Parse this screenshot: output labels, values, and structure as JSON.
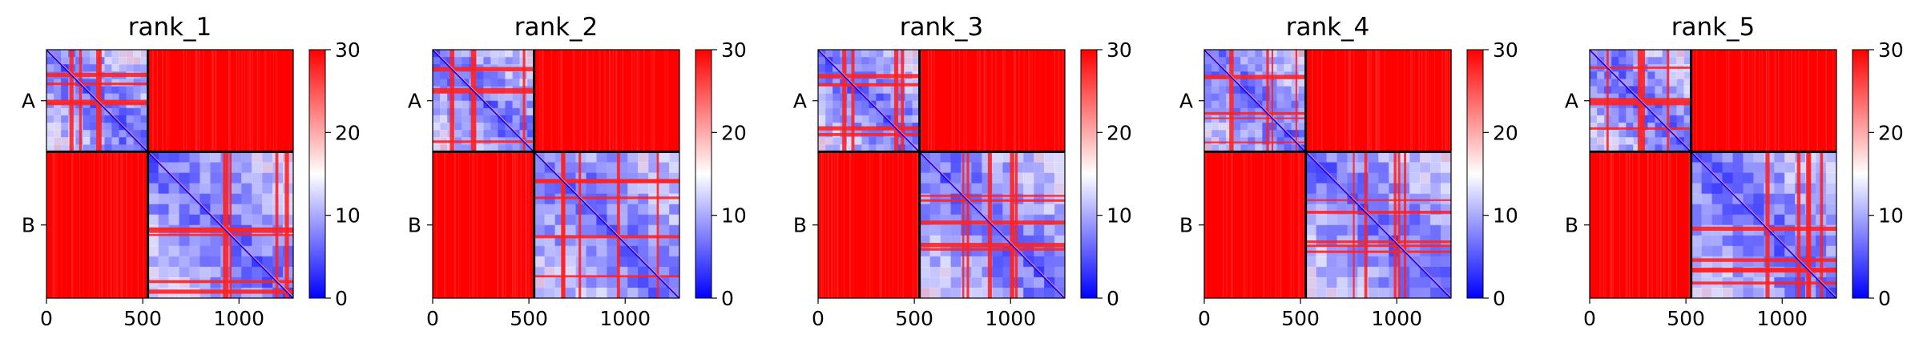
{
  "chart_data": {
    "type": "heatmap",
    "colormap": {
      "name": "bwr",
      "low": "#0000ff",
      "mid": "#ffffff",
      "high": "#ff0000"
    },
    "clim": [
      0,
      30
    ],
    "colorbar_ticks": [
      "0",
      "10",
      "20",
      "30"
    ],
    "colorbar_tick_values": [
      0,
      10,
      20,
      30
    ],
    "x_ticks": [
      "0",
      "500",
      "1000"
    ],
    "x_tick_values": [
      0,
      500,
      1000
    ],
    "x_range": [
      0,
      1282
    ],
    "chains": [
      {
        "label": "A",
        "start": 0,
        "end": 527
      },
      {
        "label": "B",
        "start": 527,
        "end": 1282
      }
    ],
    "block_structure": {
      "intra_chain": "low values (blue) with a red diagonal and red stripe artifacts",
      "inter_chain": "high values (red, ~30)"
    },
    "panels": [
      {
        "title": "rank_1"
      },
      {
        "title": "rank_2"
      },
      {
        "title": "rank_3"
      },
      {
        "title": "rank_4"
      },
      {
        "title": "rank_5"
      }
    ]
  }
}
